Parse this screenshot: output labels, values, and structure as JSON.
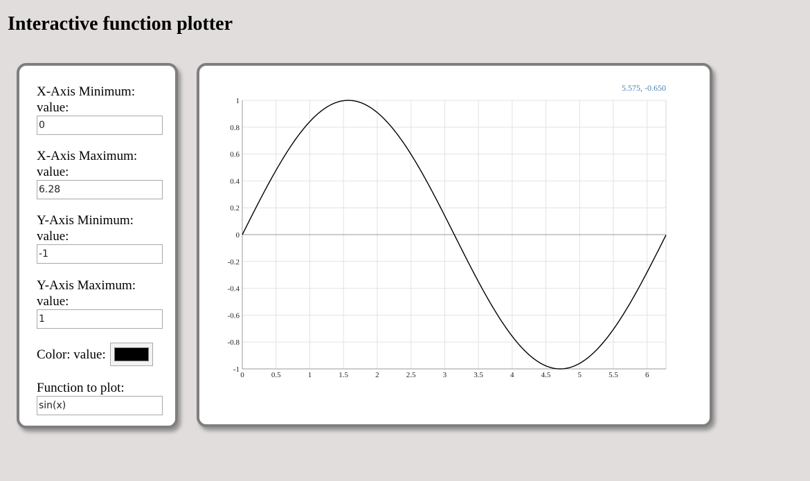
{
  "page": {
    "title": "Interactive function plotter"
  },
  "controls": {
    "x_min": {
      "label": "X-Axis Minimum: value:",
      "value": "0"
    },
    "x_max": {
      "label": "X-Axis Maximum: value:",
      "value": "6.28"
    },
    "y_min": {
      "label": "Y-Axis Minimum: value:",
      "value": "-1"
    },
    "y_max": {
      "label": "Y-Axis Maximum: value:",
      "value": "1"
    },
    "color": {
      "label": "Color: value:",
      "value": "#000000"
    },
    "function": {
      "label": "Function to plot:",
      "value": "sin(x)"
    }
  },
  "plot": {
    "coord_readout": "5.575, -0.650",
    "readout_color": "#4a7fb0"
  },
  "chart_data": {
    "type": "line",
    "title": "",
    "xlabel": "",
    "ylabel": "",
    "function": "sin(x)",
    "xlim": [
      0,
      6.28
    ],
    "ylim": [
      -1,
      1
    ],
    "x_ticks": [
      "0",
      "0.5",
      "1",
      "1.5",
      "2",
      "2.5",
      "3",
      "3.5",
      "4",
      "4.5",
      "5",
      "5.5",
      "6"
    ],
    "y_ticks": [
      "1",
      "0.8",
      "0.6",
      "0.4",
      "0.2",
      "0",
      "-0.2",
      "-0.4",
      "-0.6",
      "-0.8",
      "-1"
    ],
    "grid": true,
    "series": [
      {
        "color": "#000000",
        "x": [
          0,
          0.5,
          1,
          1.5,
          2,
          2.5,
          3,
          3.5,
          4,
          4.5,
          5,
          5.5,
          6,
          6.28
        ],
        "y": [
          0,
          0.479,
          0.841,
          0.997,
          0.909,
          0.598,
          0.141,
          -0.351,
          -0.757,
          -0.978,
          -0.959,
          -0.706,
          -0.279,
          -0.003
        ]
      }
    ]
  }
}
